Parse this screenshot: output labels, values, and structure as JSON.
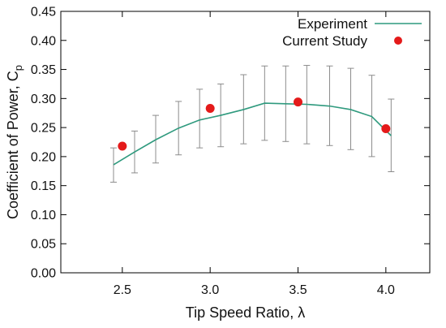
{
  "chart_data": {
    "type": "line",
    "xlabel": "Tip Speed Ratio, λ",
    "ylabel_main": "Coefficient of Power, C",
    "ylabel_sub": "p",
    "xlim": [
      2.15,
      4.25
    ],
    "ylim": [
      0.0,
      0.45
    ],
    "xticks": [
      2.5,
      3.0,
      3.5,
      4.0
    ],
    "xtick_labels": [
      "2.5",
      "3.0",
      "3.5",
      "4.0"
    ],
    "yticks": [
      0.0,
      0.05,
      0.1,
      0.15,
      0.2,
      0.25,
      0.3,
      0.35,
      0.4,
      0.45
    ],
    "ytick_labels": [
      "0.00",
      "0.05",
      "0.10",
      "0.15",
      "0.20",
      "0.25",
      "0.30",
      "0.35",
      "0.40",
      "0.45"
    ],
    "grid": false,
    "legend_position": "top-right",
    "colors": {
      "experiment": "#2f9a7e",
      "current_study": "#e41a1a",
      "error_bars": "#8c8c8c"
    },
    "series": [
      {
        "name": "Experiment",
        "kind": "line-with-error-bars",
        "x": [
          2.45,
          2.57,
          2.69,
          2.82,
          2.94,
          3.06,
          3.19,
          3.31,
          3.43,
          3.55,
          3.68,
          3.8,
          3.92,
          4.03
        ],
        "y": [
          0.186,
          0.208,
          0.229,
          0.249,
          0.263,
          0.271,
          0.281,
          0.292,
          0.291,
          0.29,
          0.287,
          0.281,
          0.269,
          0.236
        ],
        "err_low": [
          0.156,
          0.172,
          0.189,
          0.203,
          0.215,
          0.217,
          0.222,
          0.228,
          0.226,
          0.222,
          0.219,
          0.212,
          0.2,
          0.174
        ],
        "err_high": [
          0.215,
          0.244,
          0.271,
          0.295,
          0.316,
          0.325,
          0.341,
          0.356,
          0.356,
          0.357,
          0.356,
          0.352,
          0.34,
          0.299
        ]
      },
      {
        "name": "Current Study",
        "kind": "scatter",
        "x": [
          2.5,
          3.0,
          3.5,
          4.0
        ],
        "y": [
          0.218,
          0.283,
          0.294,
          0.248
        ]
      }
    ]
  }
}
